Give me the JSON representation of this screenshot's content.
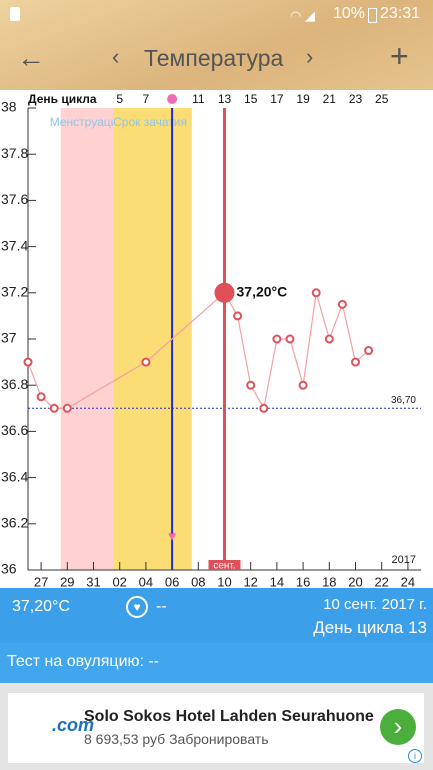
{
  "status_bar": {
    "battery": "10%",
    "time": "23:31"
  },
  "header": {
    "title": "Температура"
  },
  "chart_data": {
    "type": "line",
    "x2_label": "День цикла",
    "x2ticks": [
      {
        "value": 6,
        "label": "5"
      },
      {
        "value": 8,
        "label": "7"
      },
      {
        "value": 12,
        "label": "11"
      },
      {
        "value": 14,
        "label": "13"
      },
      {
        "value": 16,
        "label": "15"
      },
      {
        "value": 18,
        "label": "17"
      },
      {
        "value": 20,
        "label": "19"
      },
      {
        "value": 22,
        "label": "21"
      },
      {
        "value": 24,
        "label": "23"
      },
      {
        "value": 26,
        "label": "25"
      }
    ],
    "xlim": [
      -1,
      29
    ],
    "xticks": [
      {
        "value": 0,
        "label": "27"
      },
      {
        "value": 2,
        "label": "29"
      },
      {
        "value": 4,
        "label": "31"
      },
      {
        "value": 6,
        "label": "02"
      },
      {
        "value": 8,
        "label": "04"
      },
      {
        "value": 10,
        "label": "06"
      },
      {
        "value": 12,
        "label": "08"
      },
      {
        "value": 14,
        "label": "10"
      },
      {
        "value": 16,
        "label": "12"
      },
      {
        "value": 18,
        "label": "14"
      },
      {
        "value": 20,
        "label": "16"
      },
      {
        "value": 22,
        "label": "18"
      },
      {
        "value": 24,
        "label": "20"
      },
      {
        "value": 26,
        "label": "22"
      },
      {
        "value": 28,
        "label": "24"
      }
    ],
    "ylim": [
      36,
      38
    ],
    "yticks": [
      36,
      36.2,
      36.4,
      36.6,
      36.8,
      37,
      37.2,
      37.4,
      37.6,
      37.8,
      38
    ],
    "year_label": "2017",
    "bands": [
      {
        "name": "Менструация",
        "color": "#ffd1d1",
        "xlim": [
          1.5,
          5.5
        ]
      },
      {
        "name": "Срок зачатия",
        "color": "#fcdc74",
        "xlim": [
          5.5,
          11.5
        ]
      }
    ],
    "ovulation_x": 10,
    "ovulation_color": "#1e2fc8",
    "selected_x": 14,
    "selected_color": "#e0505a",
    "selected_label": "сент.",
    "threshold": {
      "value": 36.7,
      "label": "36,70",
      "color": "#1e2fc8"
    },
    "series": [
      {
        "name": "Температура",
        "color": "#f5a0a0",
        "marker_color": "#e0505a",
        "x": [
          -1,
          0,
          1,
          2,
          8,
          14,
          15,
          16,
          17,
          18,
          19,
          20,
          21,
          22,
          23,
          24,
          25
        ],
        "values": [
          36.9,
          36.75,
          36.7,
          36.7,
          36.9,
          37.2,
          37.1,
          36.8,
          36.7,
          37.0,
          37.0,
          36.8,
          37.2,
          37.0,
          37.15,
          36.9,
          36.95
        ],
        "value_labels": [
          null,
          null,
          null,
          null,
          null,
          "37,20°C",
          null,
          null,
          null,
          null,
          null,
          null,
          null,
          null,
          null,
          null,
          null
        ]
      }
    ]
  },
  "info": {
    "temperature": "37,20°C",
    "heart": "--",
    "date": "10 сент. 2017 г.",
    "cycle_day": "День цикла 13"
  },
  "test": "Тест на овуляцию: --",
  "ad": {
    "logo": ".com",
    "title": "Solo Sokos Hotel Lahden Seurahuone",
    "subtitle": "8 693,53 руб Забронировать"
  }
}
